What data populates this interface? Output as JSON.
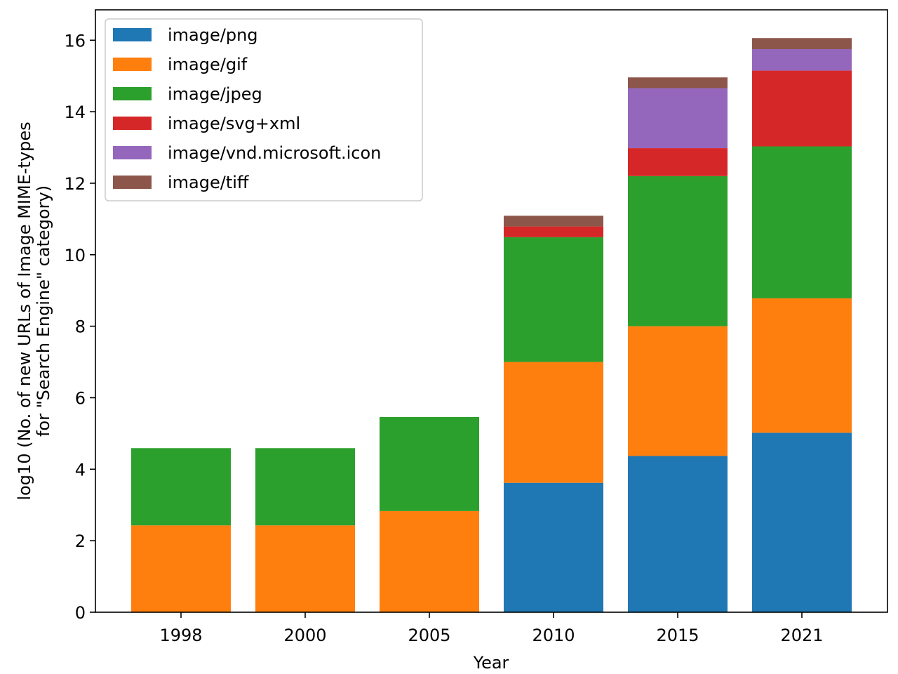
{
  "chart_data": {
    "type": "bar",
    "stacked": true,
    "categories": [
      "1998",
      "2000",
      "2005",
      "2010",
      "2015",
      "2021"
    ],
    "series": [
      {
        "name": "image/png",
        "color": "#1f77b4",
        "values": [
          0,
          0,
          0,
          3.62,
          4.37,
          5.02
        ]
      },
      {
        "name": "image/gif",
        "color": "#ff7f0e",
        "values": [
          2.43,
          2.43,
          2.83,
          3.38,
          3.63,
          3.76
        ]
      },
      {
        "name": "image/jpeg",
        "color": "#2ca02c",
        "values": [
          2.16,
          2.16,
          2.63,
          3.49,
          4.2,
          4.25
        ]
      },
      {
        "name": "image/svg+xml",
        "color": "#d62728",
        "values": [
          0,
          0,
          0,
          0.3,
          0.78,
          2.12
        ]
      },
      {
        "name": "image/vnd.microsoft.icon",
        "color": "#9467bd",
        "values": [
          0,
          0,
          0,
          0,
          1.68,
          0.6
        ]
      },
      {
        "name": "image/tiff",
        "color": "#8c564b",
        "values": [
          0,
          0,
          0,
          0.3,
          0.3,
          0.31
        ]
      }
    ],
    "xlabel": "Year",
    "ylabel_lines": [
      "log10 (No. of new URLs of Image MIME-types",
      "for \"Search Engine\" category)"
    ],
    "ylim": [
      0,
      16.85
    ],
    "yticks": [
      0,
      2,
      4,
      6,
      8,
      10,
      12,
      14,
      16
    ],
    "grid": false,
    "legend_position": "upper-left"
  }
}
